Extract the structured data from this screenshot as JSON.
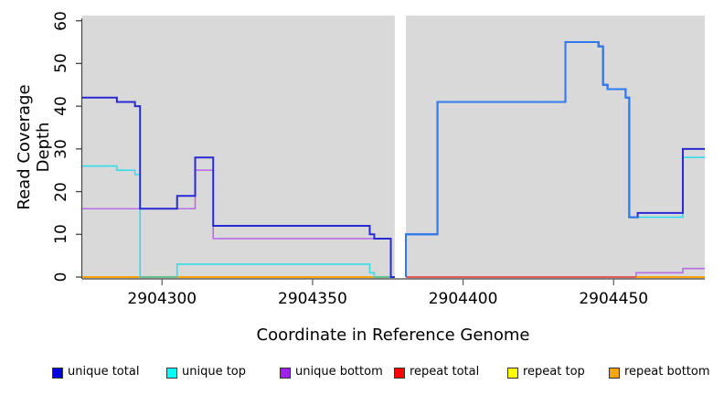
{
  "chart_data": {
    "type": "line",
    "subtype": "step-coverage",
    "title": "",
    "xlabel": "Coordinate in Reference Genome",
    "ylabel": "Read Coverage Depth",
    "xlim": [
      2904273.5,
      2904480.3
    ],
    "ylim": [
      0,
      60
    ],
    "x_ticks": [
      2904300,
      2904350,
      2904400,
      2904450
    ],
    "y_ticks": [
      0,
      10,
      20,
      30,
      40,
      50,
      60
    ],
    "grid": false,
    "legend_position": "bottom",
    "panel_background": "#d9d9d9",
    "no_data_gap_x": [
      2904377.3,
      2904381
    ],
    "series": [
      {
        "name": "unique total",
        "color": "#0000cd",
        "render_color": "#2a2ad2",
        "line_width": 2,
        "segments": [
          [
            2904273.5,
            2904285,
            42
          ],
          [
            2904285,
            2904291,
            41
          ],
          [
            2904291,
            2904292.7,
            40
          ],
          [
            2904292.7,
            2904305,
            16
          ],
          [
            2904305,
            2904311,
            19
          ],
          [
            2904311,
            2904317,
            28
          ],
          [
            2904317,
            2904369,
            12
          ],
          [
            2904369,
            2904370.5,
            10
          ],
          [
            2904370.5,
            2904376,
            9
          ],
          [
            2904376,
            2904377.3,
            0
          ],
          [
            2904381,
            2904391.5,
            10
          ],
          [
            2904391.5,
            2904434,
            41
          ],
          [
            2904434,
            2904445,
            55
          ],
          [
            2904445,
            2904446.5,
            54
          ],
          [
            2904446.5,
            2904448,
            45
          ],
          [
            2904448,
            2904454,
            44
          ],
          [
            2904454,
            2904455.2,
            42
          ],
          [
            2904455.2,
            2904458,
            14
          ],
          [
            2904458,
            2904473,
            15
          ],
          [
            2904473,
            2904480.3,
            30
          ]
        ]
      },
      {
        "name": "unique top",
        "color": "#00ffff",
        "render_color": "#35dde8",
        "line_width": 1.6,
        "segments": [
          [
            2904273.5,
            2904285,
            26
          ],
          [
            2904285,
            2904291,
            25
          ],
          [
            2904291,
            2904292.7,
            24
          ],
          [
            2904292.7,
            2904305,
            0
          ],
          [
            2904305,
            2904369,
            3
          ],
          [
            2904369,
            2904370.5,
            1
          ],
          [
            2904370.5,
            2904377.3,
            0
          ],
          [
            2904381,
            2904391.5,
            10
          ],
          [
            2904391.5,
            2904434,
            41
          ],
          [
            2904434,
            2904445,
            55
          ],
          [
            2904445,
            2904446.5,
            54
          ],
          [
            2904446.5,
            2904448,
            45
          ],
          [
            2904448,
            2904454,
            44
          ],
          [
            2904454,
            2904455.2,
            42
          ],
          [
            2904455.2,
            2904473,
            14
          ],
          [
            2904473,
            2904480.3,
            28
          ]
        ]
      },
      {
        "name": "unique bottom",
        "color": "#a020f0",
        "render_color": "#b76ee4",
        "line_width": 1.6,
        "segments": [
          [
            2904273.5,
            2904311,
            16
          ],
          [
            2904311,
            2904317,
            25
          ],
          [
            2904317,
            2904376,
            9
          ],
          [
            2904376,
            2904377.3,
            0
          ],
          [
            2904381,
            2904457.5,
            0
          ],
          [
            2904457.5,
            2904473,
            1
          ],
          [
            2904473,
            2904480.3,
            2
          ]
        ]
      },
      {
        "name": "repeat total",
        "color": "#ff0000",
        "render_color": "#dd4466",
        "line_width": 1.5,
        "segments": [
          [
            2904273.5,
            2904377.3,
            0
          ],
          [
            2904381,
            2904480.3,
            0
          ]
        ]
      },
      {
        "name": "repeat top",
        "color": "#ffff00",
        "render_color": "#ffff00",
        "line_width": 1.5,
        "segments": [
          [
            2904273.5,
            2904377.3,
            0
          ],
          [
            2904381,
            2904480.3,
            0
          ]
        ]
      },
      {
        "name": "repeat bottom",
        "color": "#ffa500",
        "render_color": "#ffa500",
        "line_width": 1.8,
        "segments": [
          [
            2904273.5,
            2904377.3,
            0
          ],
          [
            2904381,
            2904480.3,
            0
          ]
        ]
      }
    ],
    "render_overlays": {
      "red_over_orange_baseline_x": [
        2904381,
        2904457.5
      ],
      "red_over_orange_color": "#dd4466",
      "cyan_zero_blend_x": [
        [
          2904292.7,
          2904305
        ],
        [
          2904370.5,
          2904377.3
        ]
      ],
      "cyan_zero_blend_color": "#55c08c",
      "total_top_coincident_x": [
        2904381,
        2904458
      ],
      "total_top_coincident_color": "#2e7bef"
    }
  },
  "legend": {
    "items": [
      {
        "label": "unique total",
        "swatch_color": "#0000dd"
      },
      {
        "label": "unique top",
        "swatch_color": "#00ffff"
      },
      {
        "label": "unique bottom",
        "swatch_color": "#a020f0"
      },
      {
        "label": "repeat total",
        "swatch_color": "#ff0000"
      },
      {
        "label": "repeat top",
        "swatch_color": "#ffff00"
      },
      {
        "label": "repeat bottom",
        "swatch_color": "#ffa500"
      }
    ]
  }
}
